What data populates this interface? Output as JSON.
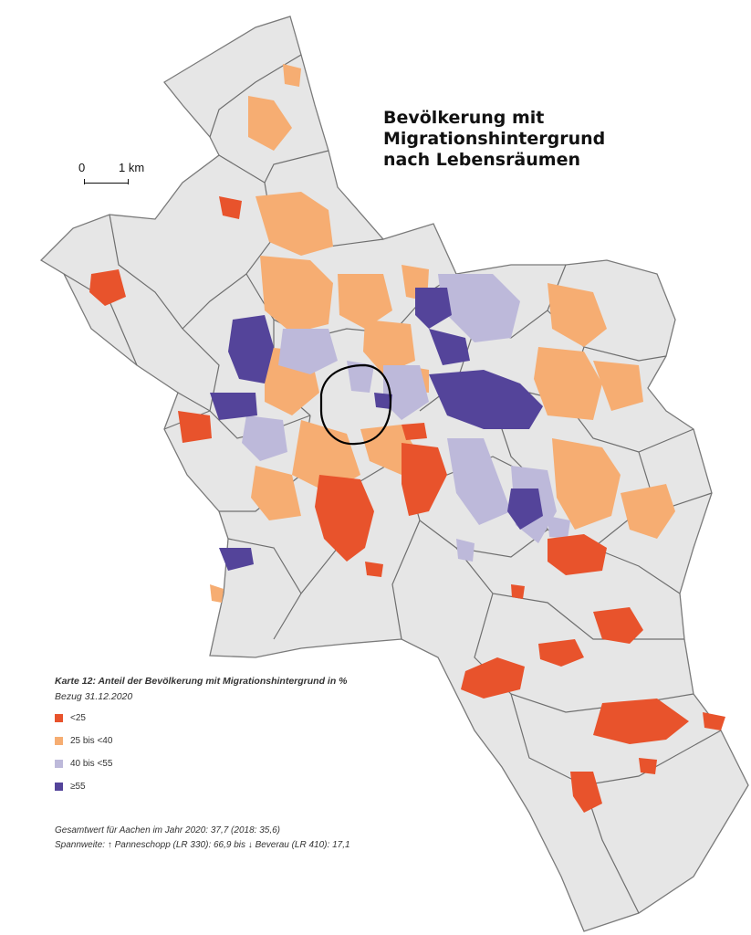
{
  "map": {
    "title_lines": [
      "Bevölkerung mit",
      "Migrationshintergrund",
      "nach Lebensräumen"
    ],
    "scale": {
      "start": "0",
      "end": "1 km"
    },
    "colors": {
      "background": "#ffffff",
      "city": "#e6e6e6",
      "boundary": "#6f6f6f",
      "center_ring": "#000000"
    }
  },
  "legend": {
    "title": "Karte 12: Anteil der Bevölkerung mit Migrationshintergrund in %",
    "subtitle": "Bezug 31.12.2020",
    "items": [
      {
        "label": "<25",
        "color": "#e8532c"
      },
      {
        "label": "25 bis <40",
        "color": "#f6ad72"
      },
      {
        "label": "40 bis <55",
        "color": "#bdb9da"
      },
      {
        "label": "≥55",
        "color": "#54449a"
      }
    ]
  },
  "footer": {
    "line1": "Gesamtwert für Aachen im Jahr 2020: 37,7 (2018: 35,6)",
    "line2": "Spannweite: ↑ Panneschopp (LR 330): 66,9 bis ↓ Beverau (LR 410): 17,1"
  }
}
